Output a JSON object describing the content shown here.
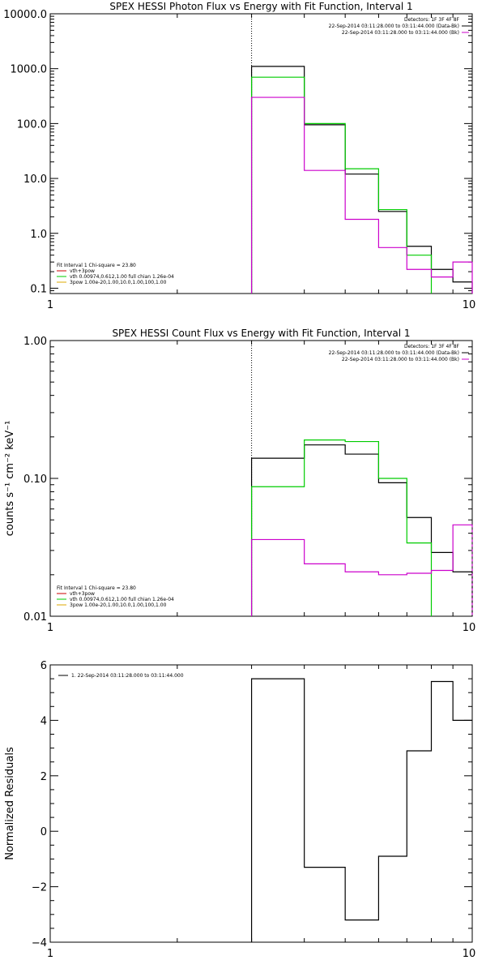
{
  "chart_data": [
    {
      "type": "line",
      "title": "SPEX HESSI Photon Flux vs Energy with Fit Function, Interval 1",
      "xlabel": "",
      "ylabel": "",
      "xscale": "log",
      "yscale": "log",
      "xlim": [
        1,
        10
      ],
      "ylim": [
        0.08,
        10000
      ],
      "xticks": [
        "1",
        "10"
      ],
      "yticks": [
        {
          "v": 10000,
          "label": "10000.0"
        },
        {
          "v": 1000,
          "label": "1000.0"
        },
        {
          "v": 100,
          "label": "100.0"
        },
        {
          "v": 10,
          "label": "10.0"
        },
        {
          "v": 1,
          "label": "1.0"
        },
        {
          "v": 0.1,
          "label": "0.1"
        }
      ],
      "vline_x": 3,
      "info_right": [
        "Detectors: 1F 3F 4F 8F",
        "22-Sep-2014 03:11:28.000 to 03:11:44.000 (Data-Bk)",
        "22-Sep-2014 03:11:28.000 to 03:11:44.000 (Bk)"
      ],
      "info_left": [
        "Fit Interval 1   Chi-square = 23.80",
        "vth+3pow",
        "vth 0.00974,0.612,1.00  full chian 1.26e-04",
        "3pow 1.00e-20,1.00,10.0,1.00,100,1.00"
      ],
      "series": [
        {
          "color": "#000000",
          "edges": [
            3,
            4,
            5,
            6,
            7,
            8,
            9,
            10
          ],
          "values": [
            1100,
            95,
            12,
            2.5,
            0.58,
            0.22,
            0.13
          ]
        },
        {
          "color": "#00cc00",
          "edges": [
            3,
            4,
            5,
            6,
            7,
            8
          ],
          "values": [
            700,
            100,
            15,
            2.7,
            0.4
          ]
        },
        {
          "color": "#cc00cc",
          "edges": [
            3,
            4,
            5,
            6,
            7,
            8,
            9,
            10
          ],
          "values": [
            300,
            14,
            1.8,
            0.55,
            0.22,
            0.16,
            0.3
          ]
        }
      ]
    },
    {
      "type": "line",
      "title": "SPEX HESSI Count Flux vs Energy with Fit Function, Interval 1",
      "xlabel": "",
      "ylabel": "counts s⁻¹ cm⁻² keV⁻¹",
      "xscale": "log",
      "yscale": "log",
      "xlim": [
        1,
        10
      ],
      "ylim": [
        0.01,
        1.0
      ],
      "xticks": [
        "1",
        "10"
      ],
      "yticks": [
        {
          "v": 1.0,
          "label": "1.00"
        },
        {
          "v": 0.1,
          "label": "0.10"
        },
        {
          "v": 0.01,
          "label": "0.01"
        }
      ],
      "vline_x": 3,
      "info_right": [
        "Detectors: 1F 3F 4F 8F",
        "22-Sep-2014 03:11:28.000 to 03:11:44.000 (Data-Bk)",
        "22-Sep-2014 03:11:28.000 to 03:11:44.000 (Bk)"
      ],
      "info_left": [
        "Fit Interval 1   Chi-square = 23.80",
        "vth+3pow",
        "vth 0.00974,0.612,1.00  full chian 1.26e-04",
        "3pow 1.00e-20,1.00,10.0,1.00,100,1.00"
      ],
      "series": [
        {
          "color": "#000000",
          "edges": [
            3,
            4,
            5,
            6,
            7,
            8,
            9,
            10
          ],
          "values": [
            0.14,
            0.175,
            0.15,
            0.093,
            0.052,
            0.029,
            0.021
          ]
        },
        {
          "color": "#00cc00",
          "edges": [
            3,
            4,
            5,
            6,
            7,
            8
          ],
          "values": [
            0.087,
            0.19,
            0.185,
            0.1,
            0.034
          ]
        },
        {
          "color": "#cc00cc",
          "edges": [
            3,
            4,
            5,
            6,
            7,
            8,
            9,
            10
          ],
          "values": [
            0.036,
            0.024,
            0.021,
            0.02,
            0.0205,
            0.0215,
            0.046
          ]
        }
      ]
    },
    {
      "type": "line",
      "title": "",
      "xlabel": "",
      "ylabel": "Normalized Residuals",
      "xscale": "log",
      "yscale": "linear",
      "xlim": [
        1,
        10
      ],
      "ylim": [
        -4,
        6
      ],
      "xticks": [
        "1",
        "10"
      ],
      "yticks": [
        {
          "v": 6,
          "label": "6"
        },
        {
          "v": 4,
          "label": "4"
        },
        {
          "v": 2,
          "label": "2"
        },
        {
          "v": 0,
          "label": "0"
        },
        {
          "v": -2,
          "label": "−2"
        },
        {
          "v": -4,
          "label": "−4"
        }
      ],
      "legend": "1. 22-Sep-2014 03:11:28.000 to 03:11:44.000",
      "series": [
        {
          "color": "#000000",
          "edges": [
            3,
            4,
            5,
            6,
            7,
            8,
            9,
            10
          ],
          "values": [
            5.5,
            -1.3,
            -3.2,
            -0.9,
            2.9,
            5.4,
            4.0
          ]
        }
      ]
    }
  ]
}
